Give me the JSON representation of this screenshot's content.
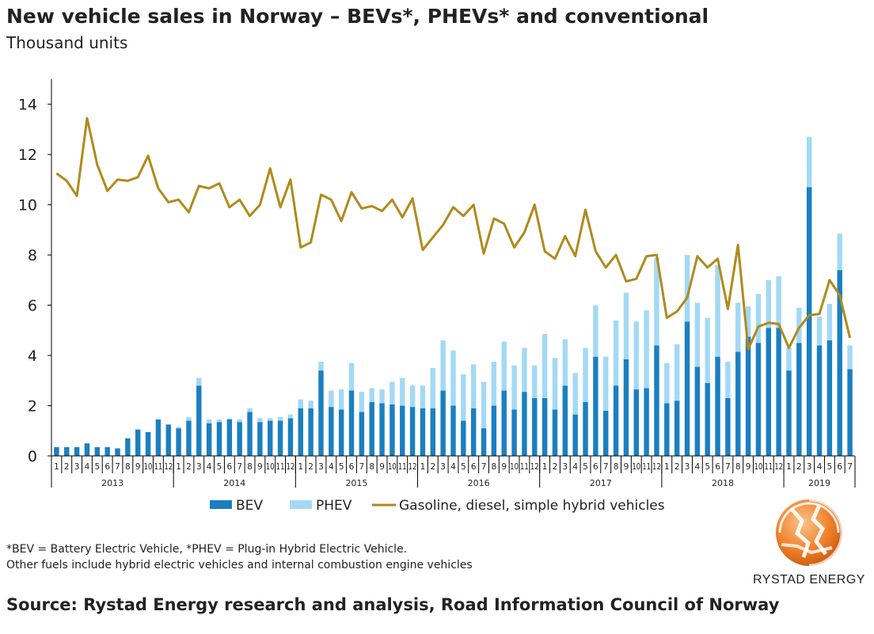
{
  "header": {
    "title": "New vehicle sales in Norway – BEVs*, PHEVs* and conventional",
    "subtitle": "Thousand units"
  },
  "footnotes": {
    "line1": "*BEV = Battery Electric Vehicle, *PHEV = Plug-in Hybrid Electric Vehicle.",
    "line2": "Other fuels include hybrid electric vehicles and internal combustion engine vehicles"
  },
  "source": "Source: Rystad Energy research and analysis, Road Information Council of Norway",
  "brand": {
    "name": "RYSTAD ENERGY",
    "logo_icon": "rystad-globe-icon"
  },
  "colors": {
    "bev": "#1a7fc1",
    "phev": "#a3d9f5",
    "conventional": "#b08a1c",
    "axis": "#000000"
  },
  "chart_data": {
    "type": "bar",
    "title": "New vehicle sales in Norway – BEVs*, PHEVs* and conventional",
    "ylabel": "Thousand units",
    "ylim": [
      0,
      15
    ],
    "yticks": [
      0,
      2,
      4,
      6,
      8,
      10,
      12,
      14
    ],
    "grid": false,
    "legend_position": "bottom",
    "categories": [
      "1",
      "2",
      "3",
      "4",
      "5",
      "6",
      "7",
      "8",
      "9",
      "10",
      "11",
      "12",
      "1",
      "2",
      "3",
      "4",
      "5",
      "6",
      "7",
      "8",
      "9",
      "10",
      "11",
      "12",
      "1",
      "2",
      "3",
      "4",
      "5",
      "6",
      "7",
      "8",
      "9",
      "10",
      "11",
      "12",
      "1",
      "2",
      "3",
      "4",
      "5",
      "6",
      "7",
      "8",
      "9",
      "10",
      "11",
      "12",
      "1",
      "2",
      "3",
      "4",
      "5",
      "6",
      "7",
      "8",
      "9",
      "10",
      "11",
      "12",
      "1",
      "2",
      "3",
      "4",
      "5",
      "6",
      "7",
      "8",
      "9",
      "10",
      "11",
      "12",
      "1",
      "2",
      "3",
      "4",
      "5",
      "6",
      "7"
    ],
    "years": [
      {
        "label": "2013",
        "months": 12
      },
      {
        "label": "2014",
        "months": 12
      },
      {
        "label": "2015",
        "months": 12
      },
      {
        "label": "2016",
        "months": 12
      },
      {
        "label": "2017",
        "months": 12
      },
      {
        "label": "2018",
        "months": 12
      },
      {
        "label": "2019",
        "months": 7
      }
    ],
    "series": [
      {
        "name": "BEV",
        "kind": "bar-stacked",
        "values": [
          0.35,
          0.35,
          0.35,
          0.5,
          0.35,
          0.35,
          0.3,
          0.7,
          1.05,
          0.95,
          1.45,
          1.25,
          1.1,
          1.4,
          2.8,
          1.3,
          1.35,
          1.45,
          1.35,
          1.75,
          1.35,
          1.4,
          1.4,
          1.5,
          1.9,
          1.9,
          3.4,
          1.95,
          1.85,
          2.6,
          1.75,
          2.15,
          2.1,
          2.05,
          2.0,
          1.95,
          1.9,
          1.9,
          2.6,
          2.0,
          1.4,
          1.9,
          1.1,
          2.0,
          2.6,
          1.85,
          2.55,
          2.3,
          2.3,
          1.85,
          2.8,
          1.65,
          2.15,
          3.95,
          1.8,
          2.8,
          3.85,
          2.65,
          2.7,
          4.4,
          2.1,
          2.2,
          5.35,
          3.55,
          2.9,
          3.95,
          2.3,
          4.15,
          4.75,
          4.5,
          5.1,
          5.1,
          3.4,
          4.5,
          10.7,
          4.4,
          4.6,
          7.4,
          3.45
        ]
      },
      {
        "name": "PHEV",
        "kind": "bar-stacked",
        "values": [
          0,
          0,
          0,
          0,
          0,
          0,
          0,
          0,
          0,
          0,
          0,
          0,
          0.05,
          0.15,
          0.3,
          0.15,
          0.1,
          0.05,
          0.1,
          0.15,
          0.15,
          0.1,
          0.15,
          0.15,
          0.35,
          0.3,
          0.35,
          0.65,
          0.8,
          1.1,
          0.8,
          0.55,
          0.55,
          0.9,
          1.1,
          0.85,
          0.9,
          1.6,
          2.0,
          2.2,
          1.85,
          1.75,
          1.85,
          1.75,
          1.95,
          1.75,
          1.75,
          1.3,
          2.55,
          2.05,
          1.85,
          1.65,
          2.15,
          2.05,
          2.15,
          2.6,
          2.65,
          2.7,
          3.1,
          3.5,
          1.6,
          2.25,
          2.65,
          2.55,
          2.6,
          3.65,
          1.45,
          1.95,
          1.2,
          1.95,
          1.9,
          2.05,
          0.9,
          1.4,
          2.0,
          1.15,
          1.45,
          1.45,
          0.95
        ]
      },
      {
        "name": "Gasoline, diesel, simple hybrid vehicles",
        "kind": "line",
        "values": [
          11.25,
          10.95,
          10.35,
          13.45,
          11.6,
          10.55,
          11.0,
          10.95,
          11.1,
          11.95,
          10.65,
          10.1,
          10.2,
          9.7,
          10.75,
          10.65,
          10.85,
          9.9,
          10.2,
          9.55,
          10.0,
          11.45,
          9.9,
          11.0,
          8.3,
          8.5,
          10.4,
          10.2,
          9.35,
          10.5,
          9.85,
          9.95,
          9.75,
          10.2,
          9.5,
          10.25,
          8.2,
          8.7,
          9.2,
          9.9,
          9.55,
          10.0,
          8.05,
          9.45,
          9.25,
          8.3,
          8.9,
          10.0,
          8.15,
          7.85,
          8.75,
          7.95,
          9.8,
          8.15,
          7.5,
          8.0,
          6.95,
          7.05,
          7.95,
          8.0,
          5.5,
          5.75,
          6.3,
          7.95,
          7.5,
          7.85,
          5.85,
          8.4,
          4.25,
          5.15,
          5.3,
          5.25,
          4.3,
          5.1,
          5.6,
          5.65,
          7.0,
          6.4,
          4.7
        ]
      }
    ]
  }
}
